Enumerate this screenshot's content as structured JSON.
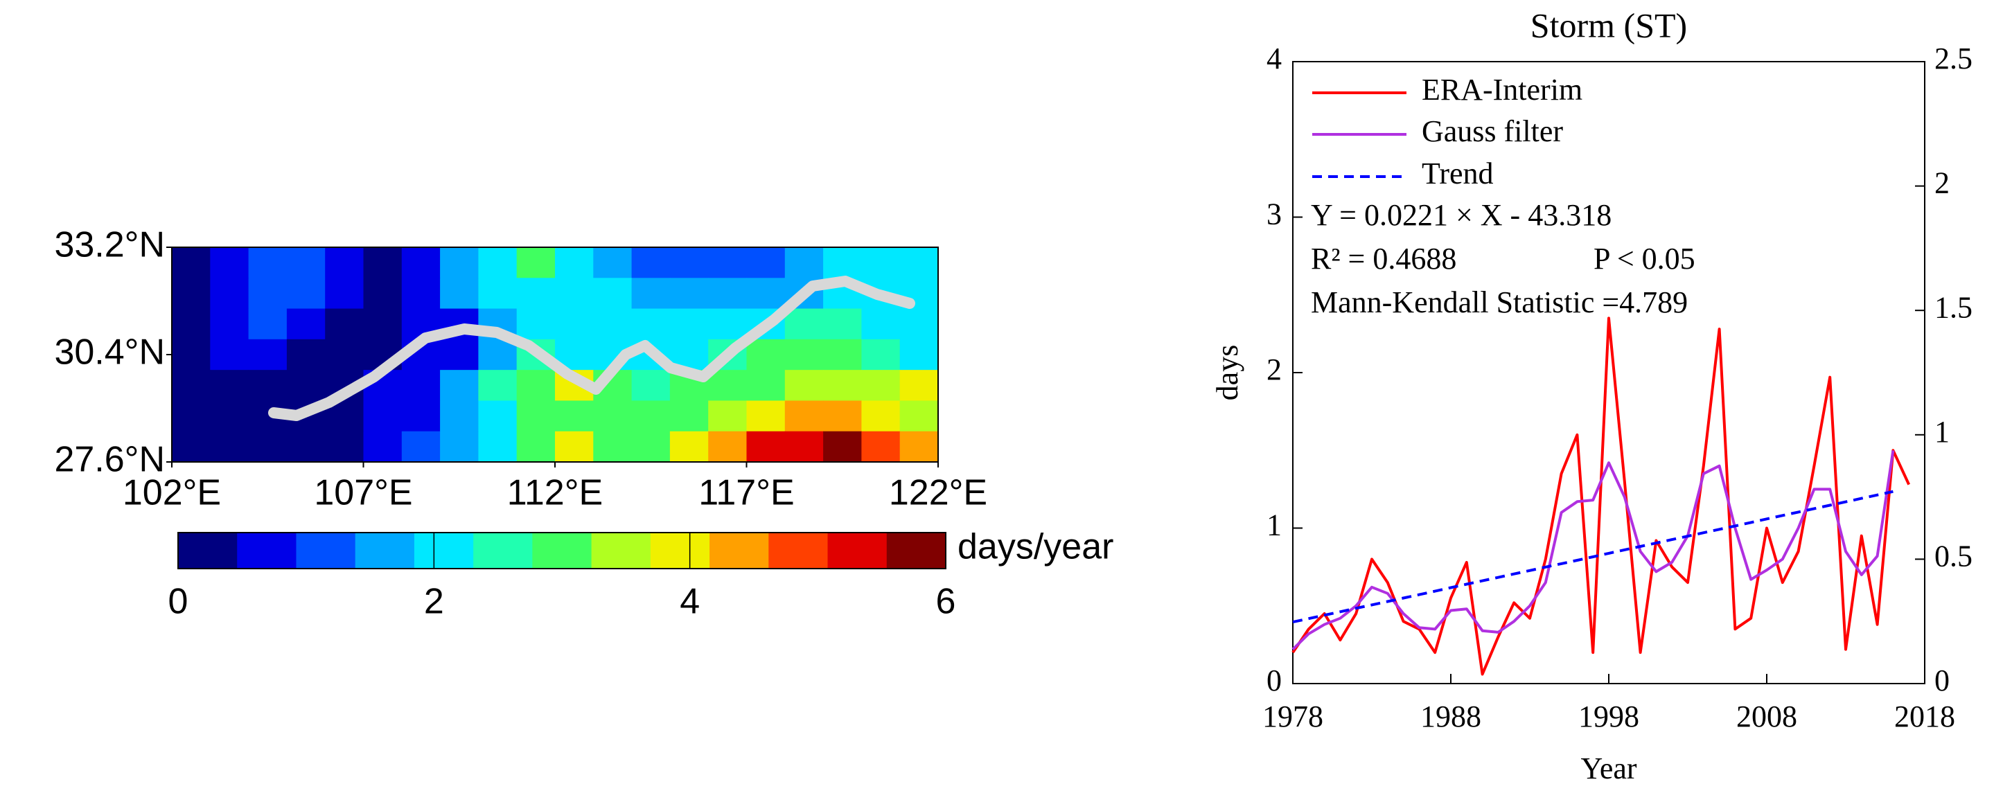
{
  "chart_data": [
    {
      "type": "contour",
      "xlim": [
        102,
        122
      ],
      "ylim": [
        27.6,
        33.2
      ],
      "xticks": [
        {
          "value": 102,
          "label": "102°E"
        },
        {
          "value": 107,
          "label": "107°E"
        },
        {
          "value": 112,
          "label": "112°E"
        },
        {
          "value": 117,
          "label": "117°E"
        },
        {
          "value": 122,
          "label": "122°E"
        }
      ],
      "yticks": [
        {
          "value": 27.6,
          "label": "27.6°N"
        },
        {
          "value": 30.4,
          "label": "30.4°N"
        },
        {
          "value": 33.2,
          "label": "33.2°N"
        }
      ],
      "values": [
        [
          0.4,
          0.5,
          1.0,
          1.2,
          0.6,
          0.4,
          0.5,
          1.6,
          2.2,
          2.8,
          2.2,
          1.8,
          1.2,
          1.0,
          1.0,
          1.0,
          1.4,
          2.0,
          2.0,
          2.1
        ],
        [
          0.4,
          0.6,
          1.1,
          1.1,
          0.5,
          0.4,
          0.5,
          1.5,
          2.0,
          2.2,
          2.1,
          1.9,
          1.6,
          1.5,
          1.5,
          1.5,
          1.8,
          2.0,
          2.1,
          2.2
        ],
        [
          0.4,
          0.8,
          1.0,
          0.6,
          0.4,
          0.4,
          0.5,
          0.8,
          1.8,
          2.0,
          2.0,
          2.0,
          2.0,
          2.0,
          2.0,
          2.2,
          2.4,
          2.5,
          2.2,
          2.0
        ],
        [
          0.4,
          0.6,
          0.5,
          0.4,
          0.4,
          0.4,
          0.5,
          0.6,
          1.5,
          2.6,
          2.2,
          2.1,
          2.0,
          2.1,
          2.6,
          3.0,
          3.0,
          2.8,
          2.6,
          2.2
        ],
        [
          0.4,
          0.4,
          0.4,
          0.4,
          0.4,
          0.5,
          0.7,
          1.5,
          2.6,
          3.0,
          3.8,
          3.0,
          2.6,
          2.8,
          3.0,
          3.2,
          3.3,
          3.6,
          3.4,
          3.8
        ],
        [
          0.4,
          0.4,
          0.4,
          0.4,
          0.4,
          0.6,
          0.9,
          1.6,
          2.0,
          3.0,
          3.2,
          3.0,
          3.0,
          3.2,
          3.4,
          3.8,
          4.2,
          4.2,
          4.0,
          3.6
        ],
        [
          0.4,
          0.4,
          0.4,
          0.4,
          0.4,
          0.6,
          1.0,
          1.8,
          2.2,
          3.0,
          3.8,
          3.0,
          2.8,
          3.8,
          4.6,
          5.2,
          5.4,
          5.6,
          4.8,
          4.2
        ]
      ],
      "colorbar": {
        "label": "days/year",
        "lim": [
          0,
          6
        ],
        "ticks": [
          0,
          2,
          4,
          6
        ],
        "colors": [
          "#000080",
          "#0000e8",
          "#0050ff",
          "#00a8ff",
          "#00e8ff",
          "#20ffb0",
          "#40ff60",
          "#b0ff20",
          "#f0f000",
          "#ffa000",
          "#ff4000",
          "#e00000",
          "#800000"
        ]
      }
    },
    {
      "type": "line",
      "title": "Storm (ST)",
      "x_label": "Year",
      "y_label": "days",
      "x": [
        1978,
        1979,
        1980,
        1981,
        1982,
        1983,
        1984,
        1985,
        1986,
        1987,
        1988,
        1989,
        1990,
        1991,
        1992,
        1993,
        1994,
        1995,
        1996,
        1997,
        1998,
        1999,
        2000,
        2001,
        2002,
        2003,
        2004,
        2005,
        2006,
        2007,
        2008,
        2009,
        2010,
        2011,
        2012,
        2013,
        2014,
        2015,
        2016,
        2017
      ],
      "xlim": [
        1978,
        2018
      ],
      "xticks": [
        1978,
        1988,
        1998,
        2008,
        2018
      ],
      "ylim": [
        0,
        4
      ],
      "yticks": [
        0,
        1,
        2,
        3,
        4
      ],
      "y2lim": [
        0,
        2.5
      ],
      "y2ticks": [
        0,
        0.5,
        1,
        1.5,
        2,
        2.5
      ],
      "series": [
        {
          "name": "ERA-Interim",
          "color": "#ff0000",
          "style": "solid",
          "values": [
            0.2,
            0.35,
            0.45,
            0.28,
            0.45,
            0.8,
            0.65,
            0.4,
            0.35,
            0.2,
            0.55,
            0.78,
            0.06,
            0.3,
            0.52,
            0.42,
            0.8,
            1.35,
            1.6,
            0.2,
            2.35,
            1.3,
            0.2,
            0.92,
            0.75,
            0.65,
            1.4,
            2.28,
            0.35,
            0.42,
            1.0,
            0.65,
            0.85,
            1.4,
            1.97,
            0.22,
            0.95,
            0.38,
            1.5,
            1.28
          ]
        },
        {
          "name": "Gauss filter",
          "color": "#b030e0",
          "style": "solid",
          "values": [
            0.22,
            0.32,
            0.38,
            0.42,
            0.5,
            0.62,
            0.58,
            0.45,
            0.36,
            0.35,
            0.47,
            0.48,
            0.34,
            0.33,
            0.4,
            0.5,
            0.65,
            1.1,
            1.17,
            1.18,
            1.42,
            1.2,
            0.85,
            0.72,
            0.78,
            0.95,
            1.35,
            1.4,
            1.0,
            0.67,
            0.73,
            0.8,
            1.0,
            1.25,
            1.25,
            0.85,
            0.7,
            0.82,
            1.5,
            null
          ]
        },
        {
          "name": "Trend",
          "color": "#0000ff",
          "style": "dashed",
          "values": [
            0.396,
            0.418,
            0.44,
            0.462,
            0.484,
            0.506,
            0.528,
            0.55,
            0.572,
            0.594,
            0.617,
            0.639,
            0.661,
            0.683,
            0.705,
            0.727,
            0.749,
            0.771,
            0.793,
            0.815,
            0.838,
            0.86,
            0.882,
            0.904,
            0.926,
            0.948,
            0.97,
            0.992,
            1.014,
            1.036,
            1.059,
            1.081,
            1.103,
            1.125,
            1.147,
            1.169,
            1.191,
            1.213,
            1.235,
            null
          ]
        }
      ],
      "annotations": [
        "Y = 0.0221 × X - 43.318",
        "R² = 0.4688",
        "P < 0.05",
        "Mann-Kendall Statistic =4.789"
      ]
    }
  ]
}
